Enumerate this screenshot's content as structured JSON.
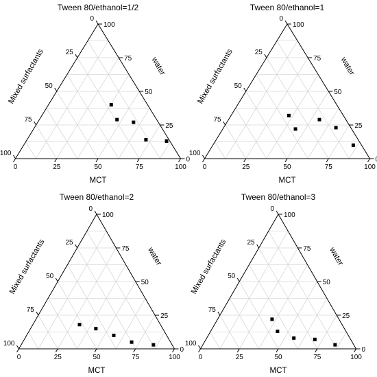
{
  "chart_data": [
    {
      "type": "scatter",
      "subtype": "ternary",
      "title": "Tween 80/ethanol=1/2",
      "axes": {
        "bottom": "MCT",
        "right": "water",
        "left": "Mixed surfactants"
      },
      "ticks": [
        "0",
        "25",
        "50",
        "75",
        "100"
      ],
      "grid": true,
      "points": [
        {
          "MCT": 38,
          "water": 40,
          "mixed_surfactants": 22
        },
        {
          "MCT": 47,
          "water": 29,
          "mixed_surfactants": 24
        },
        {
          "MCT": 58,
          "water": 27,
          "mixed_surfactants": 15
        },
        {
          "MCT": 72,
          "water": 14,
          "mixed_surfactants": 14
        },
        {
          "MCT": 85,
          "water": 13,
          "mixed_surfactants": 2
        }
      ]
    },
    {
      "type": "scatter",
      "subtype": "ternary",
      "title": "Tween 80/ethanol=1",
      "axes": {
        "bottom": "MCT",
        "right": "water",
        "left": "Mixed surfactants"
      },
      "ticks": [
        "0",
        "25",
        "50",
        "75",
        "100"
      ],
      "grid": true,
      "points": [
        {
          "MCT": 35,
          "water": 32,
          "mixed_surfactants": 33
        },
        {
          "MCT": 44,
          "water": 22,
          "mixed_surfactants": 34
        },
        {
          "MCT": 55,
          "water": 29,
          "mixed_surfactants": 16
        },
        {
          "MCT": 68,
          "water": 23,
          "mixed_surfactants": 9
        },
        {
          "MCT": 85,
          "water": 10,
          "mixed_surfactants": 5
        }
      ]
    },
    {
      "type": "scatter",
      "subtype": "ternary",
      "title": "Tween 80/ethanol=2",
      "axes": {
        "bottom": "MCT",
        "right": "water",
        "left": "Mixed surfactants"
      },
      "ticks": [
        "0",
        "25",
        "50",
        "75",
        "100"
      ],
      "grid": true,
      "points": [
        {
          "MCT": 30,
          "water": 18,
          "mixed_surfactants": 52
        },
        {
          "MCT": 42,
          "water": 15,
          "mixed_surfactants": 43
        },
        {
          "MCT": 56,
          "water": 10,
          "mixed_surfactants": 34
        },
        {
          "MCT": 70,
          "water": 5,
          "mixed_surfactants": 25
        },
        {
          "MCT": 85,
          "water": 3,
          "mixed_surfactants": 12
        }
      ]
    },
    {
      "type": "scatter",
      "subtype": "ternary",
      "title": "Tween 80/ethanol=3",
      "axes": {
        "bottom": "MCT",
        "right": "water",
        "left": "Mixed surfactants"
      },
      "ticks": [
        "0",
        "25",
        "50",
        "75",
        "100"
      ],
      "grid": true,
      "points": [
        {
          "MCT": 35,
          "water": 22,
          "mixed_surfactants": 43
        },
        {
          "MCT": 43,
          "water": 13,
          "mixed_surfactants": 44
        },
        {
          "MCT": 56,
          "water": 8,
          "mixed_surfactants": 36
        },
        {
          "MCT": 70,
          "water": 7,
          "mixed_surfactants": 23
        },
        {
          "MCT": 85,
          "water": 3,
          "mixed_surfactants": 12
        }
      ]
    }
  ]
}
